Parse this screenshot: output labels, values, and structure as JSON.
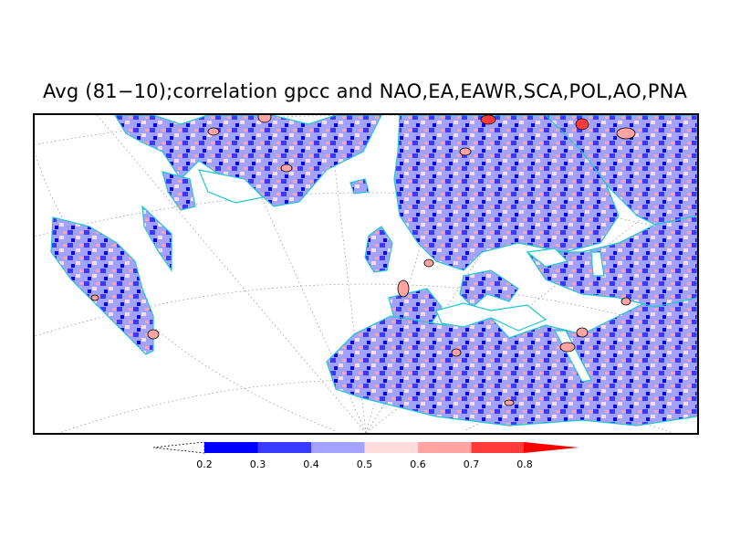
{
  "title": "Avg (81−10);correlation gpcc and NAO,EA,EAWR,SCA,POL,AO,PNA",
  "legend": {
    "ticks": [
      "0.2",
      "0.3",
      "0.4",
      "0.5",
      "0.6",
      "0.7",
      "0.8"
    ],
    "colors": [
      "#0000ff",
      "#3a3aff",
      "#a3a3ff",
      "#ffdcdc",
      "#ffa3a3",
      "#ff3a3a",
      "#ff0000"
    ],
    "below_min": "white (dashed open triangle)",
    "above_max": "#ff0000"
  },
  "map": {
    "projection": "conic",
    "region": "North America, North Atlantic, Europe, North Africa, Middle East",
    "coastline_color": "#20c8c8",
    "contour_color": "#000000",
    "graticule": "dotted gray"
  }
}
